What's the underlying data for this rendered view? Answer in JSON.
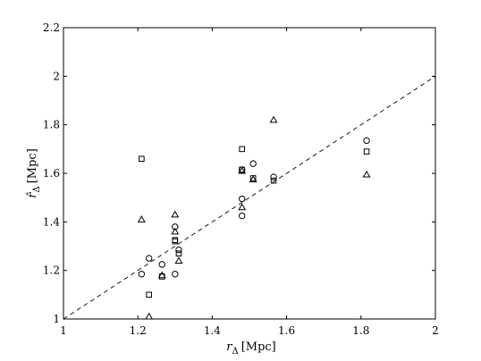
{
  "chart_data": {
    "type": "scatter",
    "xlim": [
      1,
      2
    ],
    "ylim": [
      1,
      2.2
    ],
    "x_ticks": [
      1,
      1.2,
      1.4,
      1.6,
      1.8,
      2
    ],
    "x_tick_labels": [
      "1",
      "1.2",
      "1.4",
      "1.6",
      "1.8",
      "2"
    ],
    "y_ticks": [
      1,
      1.2,
      1.4,
      1.6,
      1.8,
      2,
      2.2
    ],
    "y_tick_labels": [
      "1",
      "1.2",
      "1.4",
      "1.6",
      "1.8",
      "2",
      "2.2"
    ],
    "xlabel": {
      "symbol": "r",
      "subscript": "Δ",
      "unit": "[Mpc]"
    },
    "ylabel": {
      "symbol": "r̂",
      "subscript": "Δ",
      "unit": "[Mpc]"
    },
    "grid": false,
    "legend": null,
    "reference_line": {
      "style": "dashed",
      "from": [
        1,
        1
      ],
      "to": [
        2,
        2
      ]
    },
    "series": [
      {
        "marker": "circle",
        "points": [
          [
            1.21,
            1.185
          ],
          [
            1.23,
            1.25
          ],
          [
            1.265,
            1.225
          ],
          [
            1.3,
            1.38
          ],
          [
            1.3,
            1.185
          ],
          [
            1.31,
            1.285
          ],
          [
            1.48,
            1.495
          ],
          [
            1.48,
            1.425
          ],
          [
            1.48,
            1.615
          ],
          [
            1.51,
            1.64
          ],
          [
            1.565,
            1.585
          ],
          [
            1.815,
            1.735
          ]
        ]
      },
      {
        "marker": "square",
        "points": [
          [
            1.21,
            1.66
          ],
          [
            1.23,
            1.1
          ],
          [
            1.265,
            1.175
          ],
          [
            1.3,
            1.32
          ],
          [
            1.3,
            1.325
          ],
          [
            1.31,
            1.27
          ],
          [
            1.48,
            1.7
          ],
          [
            1.48,
            1.615
          ],
          [
            1.51,
            1.58
          ],
          [
            1.565,
            1.57
          ],
          [
            1.815,
            1.69
          ]
        ]
      },
      {
        "marker": "triangle",
        "points": [
          [
            1.21,
            1.41
          ],
          [
            1.23,
            1.01
          ],
          [
            1.265,
            1.18
          ],
          [
            1.3,
            1.43
          ],
          [
            1.3,
            1.36
          ],
          [
            1.31,
            1.24
          ],
          [
            1.48,
            1.46
          ],
          [
            1.48,
            1.61
          ],
          [
            1.51,
            1.575
          ],
          [
            1.565,
            1.82
          ],
          [
            1.815,
            1.595
          ]
        ]
      }
    ]
  }
}
